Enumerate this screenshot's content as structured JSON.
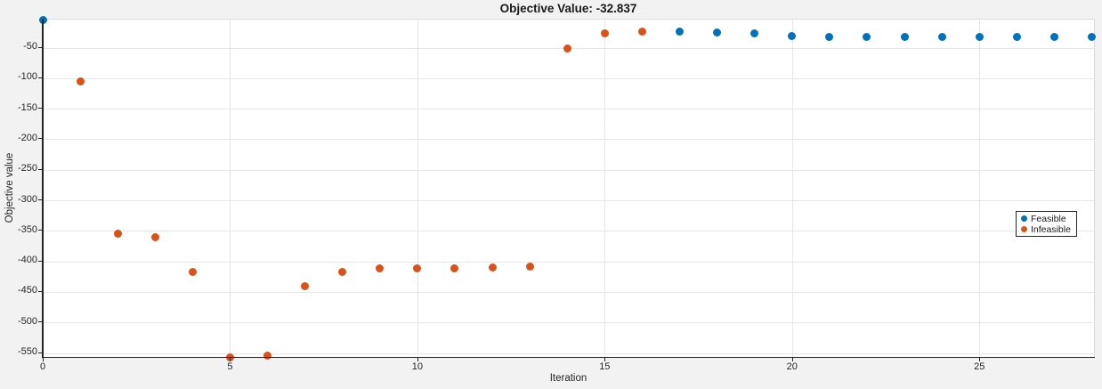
{
  "figure": {
    "title": "Objective Value: -32.837",
    "xlabel": "Iteration",
    "ylabel": "Objective value"
  },
  "legend": {
    "items": [
      {
        "label": "Feasible",
        "color": "#0072BD"
      },
      {
        "label": "Infeasible",
        "color": "#D95319"
      }
    ]
  },
  "colors": {
    "feasible": "#0072BD",
    "infeasible": "#D95319",
    "figure_background": "#f2f2f2",
    "plot_background": "#ffffff",
    "grid": "#e6e6e6",
    "axis": "#222222"
  },
  "chart_data": {
    "type": "scatter",
    "title": "Objective Value: -32.837",
    "xlabel": "Iteration",
    "ylabel": "Objective value",
    "xlim": [
      0,
      28.06
    ],
    "ylim": [
      -558,
      -4
    ],
    "xticks": [
      0,
      5,
      10,
      15,
      20,
      25
    ],
    "yticks": [
      -50,
      -100,
      -150,
      -200,
      -250,
      -300,
      -350,
      -400,
      -450,
      -500,
      -550
    ],
    "grid": true,
    "legend_position": "right-middle",
    "series": [
      {
        "name": "Feasible",
        "color": "#0072BD",
        "x": [
          0,
          17,
          18,
          19,
          20,
          21,
          22,
          23,
          24,
          25,
          26,
          27,
          28
        ],
        "y": [
          -4,
          -24,
          -25,
          -27,
          -31.5,
          -32.8,
          -32.8,
          -32.8,
          -32.8,
          -32.8,
          -32.8,
          -32.8,
          -32.8
        ]
      },
      {
        "name": "Infeasible",
        "color": "#D95319",
        "x": [
          1,
          2,
          3,
          4,
          5,
          6,
          7,
          8,
          9,
          10,
          11,
          12,
          13,
          14,
          15,
          16
        ],
        "y": [
          -106,
          -354,
          -360,
          -417,
          -557,
          -554,
          -440,
          -417,
          -412,
          -411.5,
          -411,
          -409.5,
          -408,
          -52,
          -26,
          -24
        ]
      }
    ]
  }
}
